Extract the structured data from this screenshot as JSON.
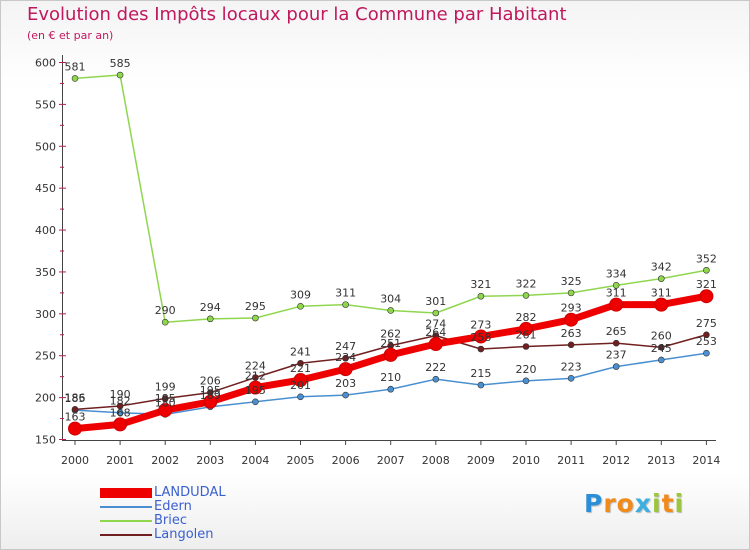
{
  "chart_data": {
    "type": "line",
    "title": "Evolution des Impôts locaux pour la Commune par Habitant",
    "subtitle": "(en € et par an)",
    "x": [
      "2000",
      "2001",
      "2002",
      "2003",
      "2004",
      "2005",
      "2006",
      "2007",
      "2008",
      "2009",
      "2010",
      "2011",
      "2012",
      "2013",
      "2014"
    ],
    "ylim": [
      150,
      600
    ],
    "yticks": [
      150,
      200,
      250,
      300,
      350,
      400,
      450,
      500,
      550,
      600
    ],
    "grid": false,
    "legend_position": "bottom-left",
    "series": [
      {
        "name": "LANDUDAL",
        "color": "#ee0000",
        "bold": true,
        "values": [
          163,
          168,
          185,
          195,
          212,
          221,
          234,
          251,
          264,
          273,
          282,
          293,
          311,
          311,
          321
        ]
      },
      {
        "name": "Edern",
        "color": "#4a90d0",
        "bold": false,
        "values": [
          185,
          182,
          180,
          189,
          195,
          201,
          203,
          210,
          222,
          215,
          220,
          223,
          237,
          245,
          253
        ]
      },
      {
        "name": "Briec",
        "color": "#8fd64f",
        "bold": false,
        "values": [
          581,
          585,
          290,
          294,
          295,
          309,
          311,
          304,
          301,
          321,
          322,
          325,
          334,
          342,
          352
        ]
      },
      {
        "name": "Langolen",
        "color": "#702020",
        "bold": false,
        "values": [
          186,
          190,
          199,
          206,
          224,
          241,
          247,
          262,
          274,
          258,
          261,
          263,
          265,
          260,
          275
        ]
      }
    ]
  },
  "logo": {
    "letters": [
      "P",
      "r",
      "o",
      "x",
      "i",
      "t",
      "i"
    ],
    "colors": [
      "#2b8fd8",
      "#f28a1a",
      "#f28a1a",
      "#3bb0e0",
      "#9bc53d",
      "#f28a1a",
      "#9bc53d"
    ]
  }
}
